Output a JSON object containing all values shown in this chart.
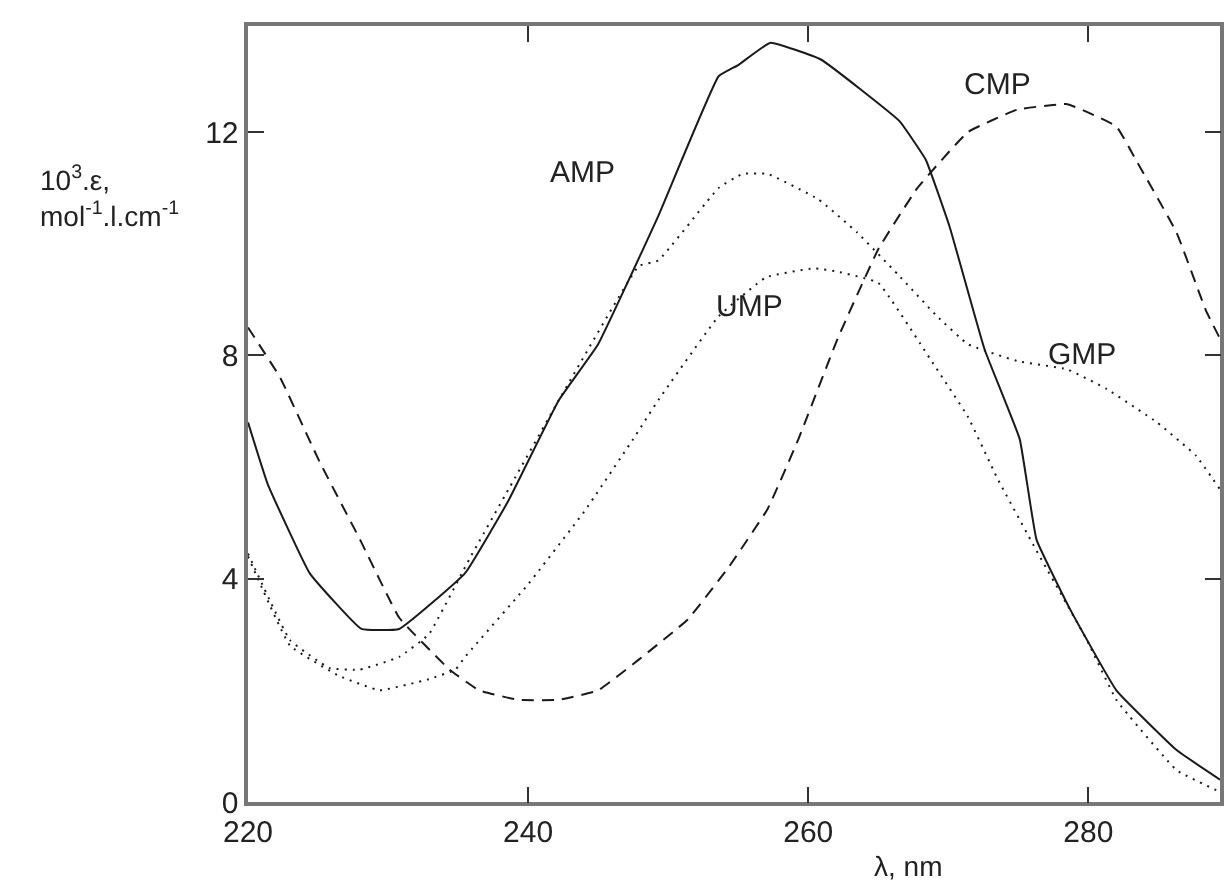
{
  "chart_data": {
    "type": "line",
    "xlabel": "λ, nm",
    "ylabel": "10$^{3}$.ε,\nmol$^{-1}$.l.cm$^{-1}$",
    "xlim": [
      220,
      289.4
    ],
    "xticks": [
      220,
      240,
      260,
      280
    ],
    "ylim": [
      0,
      13.9
    ],
    "yticks": [
      0,
      4,
      8,
      12
    ],
    "legend": false,
    "marker": "none",
    "series": [
      {
        "name": "AMP",
        "color": "#1a1a1a",
        "line_style": "solid",
        "x": [
          220,
          221.4,
          224.4,
          228.1,
          230.8,
          235.5,
          238.6,
          242.2,
          245,
          249.3,
          253.6,
          255,
          257.3,
          260.9,
          266.5,
          268.4,
          270.1,
          272.6,
          275.1,
          276.3,
          278.7,
          282,
          286.3,
          289.4
        ],
        "values": [
          6.8,
          5.7,
          4.1,
          3.1,
          3.1,
          4.1,
          5.4,
          7.2,
          8.2,
          10.5,
          13.0,
          13.2,
          13.6,
          13.3,
          12.2,
          11.5,
          10.3,
          8.1,
          6.5,
          4.7,
          3.45,
          2.0,
          0.93,
          0.4
        ]
      },
      {
        "name": "CMP",
        "color": "#1a1a1a",
        "line_style": "dashed",
        "x": [
          220,
          222.3,
          225.1,
          228,
          230.8,
          234.4,
          236.5,
          239.3,
          242.2,
          245,
          247.9,
          251.4,
          254.3,
          257.1,
          259.3,
          262.1,
          265,
          267.8,
          271.4,
          274.9,
          278.5,
          282,
          283.4,
          286.3,
          288.4,
          289.4
        ],
        "values": [
          8.5,
          7.6,
          6.1,
          4.7,
          3.3,
          2.37,
          2.0,
          1.83,
          1.83,
          2.0,
          2.55,
          3.27,
          4.2,
          5.25,
          6.5,
          8.3,
          9.9,
          11.0,
          12.0,
          12.4,
          12.5,
          12.1,
          11.5,
          10.2,
          8.8,
          8.3
        ]
      },
      {
        "name": "UMP",
        "color": "#1a1a1a",
        "line_style": "dotted",
        "x": [
          220,
          223,
          226.5,
          229.4,
          232.9,
          234.8,
          235.5,
          240,
          244,
          247.5,
          249.3,
          253.6,
          257,
          260.4,
          262.1,
          265,
          268.8,
          271.4,
          273.5,
          276.3,
          279.9,
          282,
          286.3,
          289.4
        ],
        "values": [
          4.4,
          2.8,
          2.26,
          2.0,
          2.2,
          2.37,
          2.6,
          3.9,
          5.2,
          6.5,
          7.2,
          8.7,
          9.4,
          9.56,
          9.5,
          9.3,
          7.9,
          6.9,
          5.8,
          4.5,
          2.9,
          1.83,
          0.57,
          0.18
        ]
      },
      {
        "name": "GMP",
        "color": "#1a1a1a",
        "line_style": "dotted",
        "x": [
          220,
          223,
          225.8,
          228,
          230.8,
          232.9,
          235.8,
          238.6,
          242.2,
          247.9,
          249.3,
          253.6,
          255.3,
          257.1,
          260.7,
          263.5,
          266.4,
          269.2,
          271.4,
          274.9,
          278.5,
          281.3,
          284.9,
          287.7,
          289.4
        ],
        "values": [
          4.45,
          2.9,
          2.4,
          2.37,
          2.6,
          3.0,
          4.35,
          5.6,
          7.2,
          9.6,
          9.7,
          11.0,
          11.25,
          11.25,
          10.8,
          10.2,
          9.45,
          8.7,
          8.2,
          7.9,
          7.75,
          7.4,
          6.8,
          6.2,
          5.6
        ]
      }
    ]
  }
}
